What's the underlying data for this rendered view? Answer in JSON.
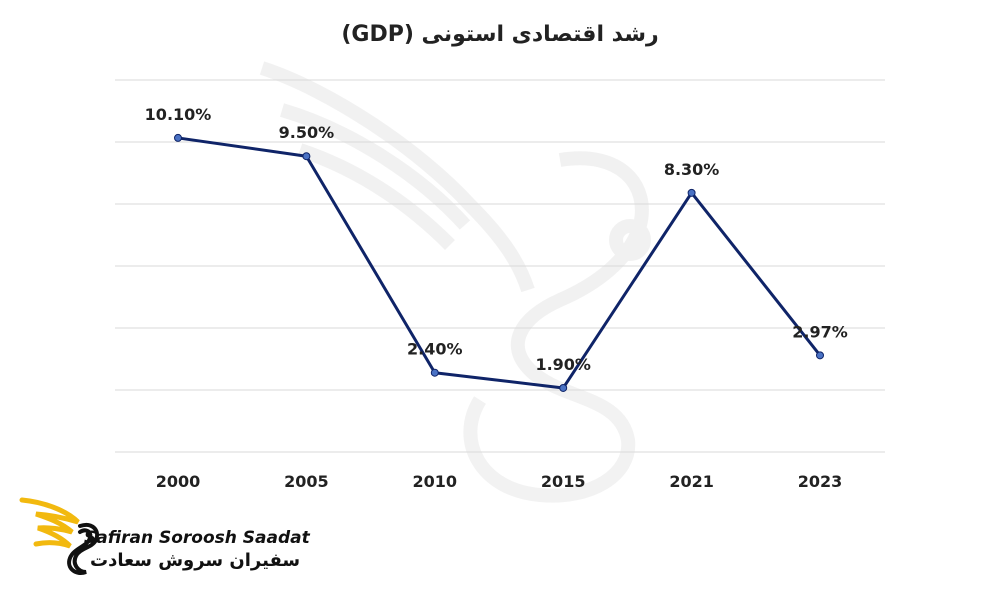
{
  "chart_data": {
    "type": "line",
    "title": "رشد اقتصادی استونی (GDP)",
    "categories": [
      "2000",
      "2005",
      "2010",
      "2015",
      "2021",
      "2023"
    ],
    "series": [
      {
        "values": [
          10.1,
          9.5,
          2.4,
          1.9,
          8.3,
          2.97
        ],
        "labels": [
          "10.10%",
          "9.50%",
          "2.40%",
          "1.90%",
          "8.30%",
          "2.97%"
        ],
        "color": "#0f2468"
      }
    ],
    "xlabel": "",
    "ylabel": "",
    "ylim": [
      -0.2,
      12.0
    ],
    "grid": true,
    "legend": "none",
    "y_tick_labels_shown": false
  },
  "watermark": {
    "icon": "bird-logo-watermark-icon"
  },
  "brand": {
    "icon": "golden-wing-logo-icon",
    "name_en": "Safiran Soroosh Saadat",
    "name_fa": "سفیران سروش سعادت",
    "accent_color": "#f2b90f"
  }
}
